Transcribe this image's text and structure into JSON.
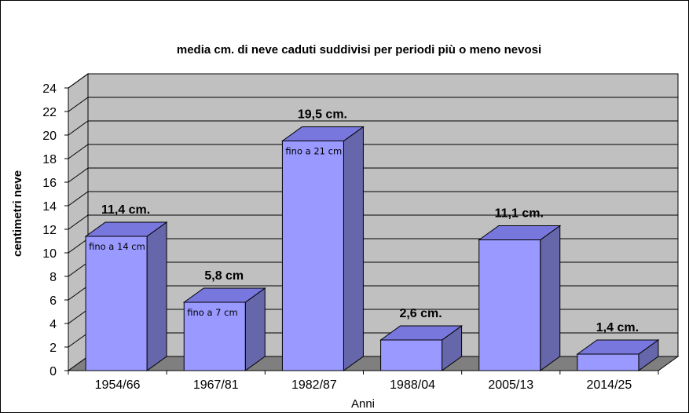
{
  "chart_data": {
    "type": "bar",
    "title": "media cm. di neve caduti suddivisi per periodi più o meno nevosi",
    "xlabel": "Anni",
    "ylabel": "centimetri neve",
    "categories": [
      "1954/66",
      "1967/81",
      "1982/87",
      "1988/04",
      "2005/13",
      "2014/25"
    ],
    "values": [
      11.4,
      5.8,
      19.5,
      2.6,
      11.1,
      1.4
    ],
    "value_labels": [
      "11,4 cm.",
      "5,8 cm",
      "19,5 cm.",
      "2,6 cm.",
      "11,1 cm.",
      "1,4 cm."
    ],
    "notes": [
      "fino a 14 cm",
      "fino a 7 cm",
      "fino a 21 cm",
      "",
      "",
      ""
    ],
    "ylim": [
      0,
      24
    ],
    "yticks": [
      "0",
      "2",
      "4",
      "6",
      "8",
      "10",
      "12",
      "14",
      "16",
      "18",
      "20",
      "22",
      "24"
    ],
    "grid": true,
    "legend": "none",
    "style": "3d-column",
    "colors": {
      "bar_front": "#9999FF",
      "bar_top": "#7777DD",
      "bar_side": "#6666AA",
      "wall": "#C0C0C0",
      "floor": "#7F7F7F"
    }
  }
}
